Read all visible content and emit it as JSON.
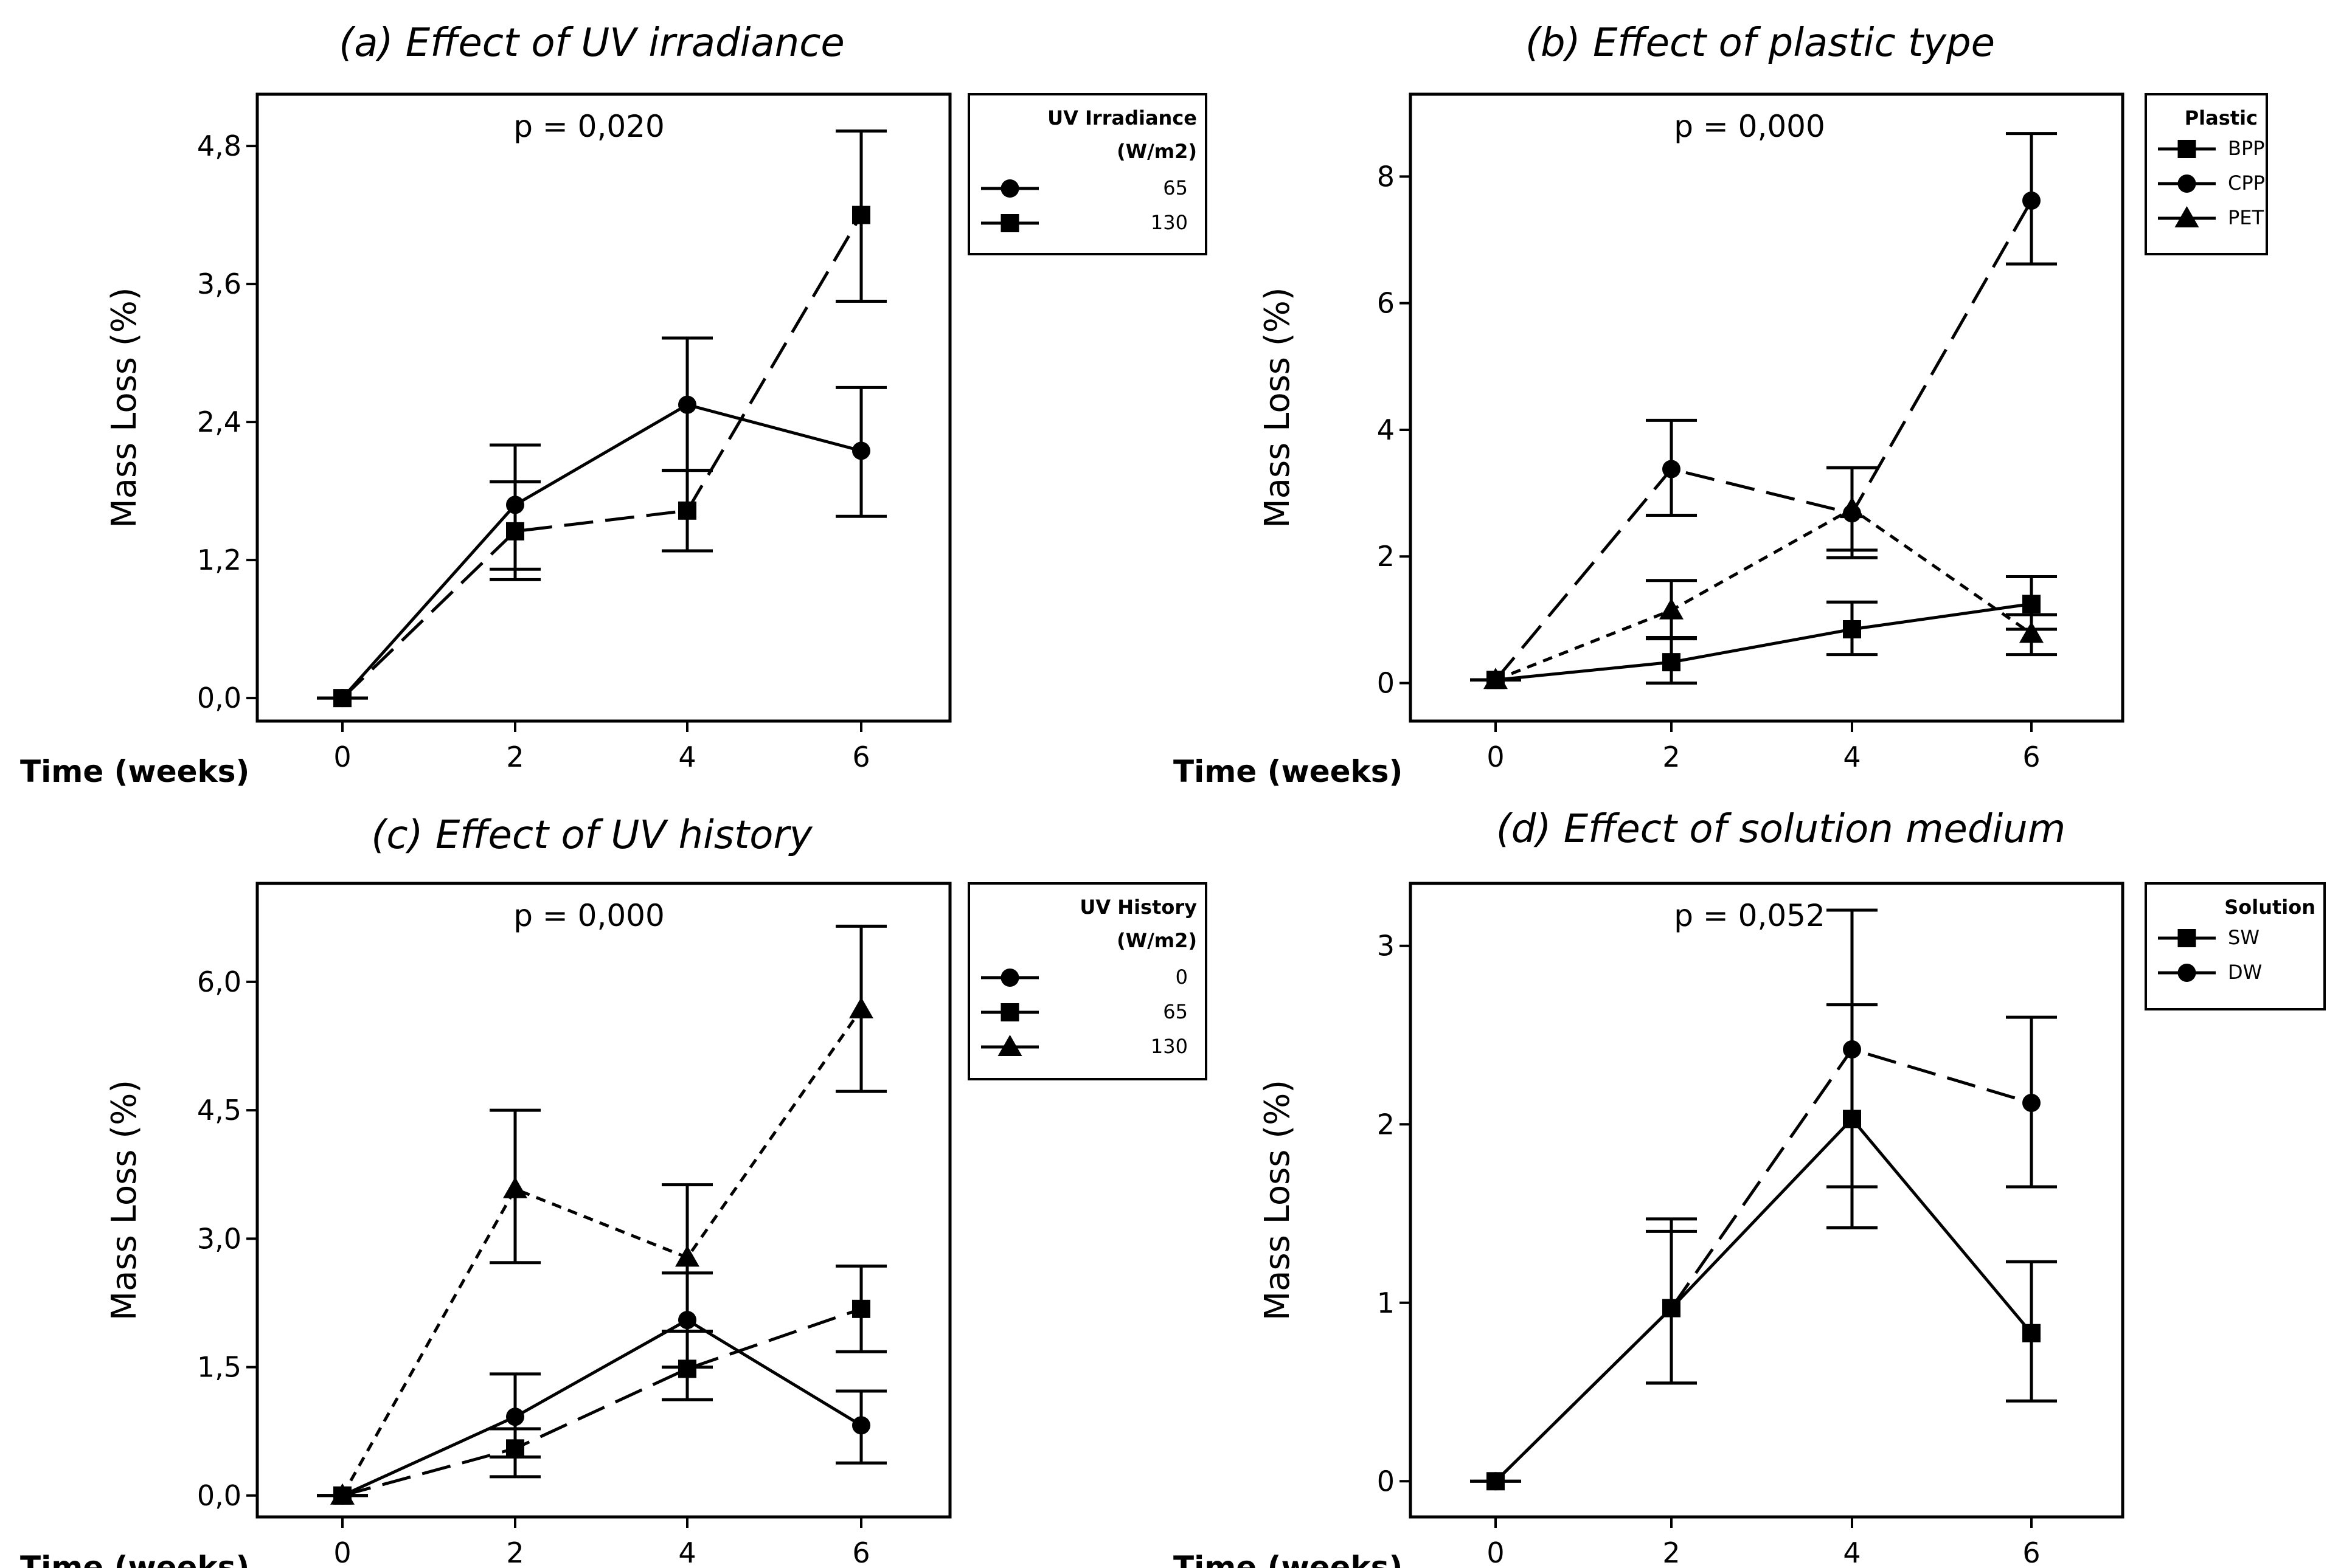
{
  "chart_data": [
    {
      "type": "line",
      "title": "(a) Effect of UV irradiance",
      "annotation": "p = 0,020",
      "xlabel": "Time (weeks)",
      "ylabel": "Mass Loss (%)",
      "x": [
        0,
        2,
        4,
        6
      ],
      "xticks": [
        "0",
        "2",
        "4",
        "6"
      ],
      "yticks": [
        0,
        1.2,
        2.4,
        3.6,
        4.8
      ],
      "ytick_labels": [
        "0,0",
        "1,2",
        "2,4",
        "3,6",
        "4,8"
      ],
      "ylim": [
        -0.2,
        5.25
      ],
      "legend_title": "UV Irradiance",
      "legend_subtitle": "(W/m2)",
      "series": [
        {
          "name": "65",
          "marker": "circle",
          "dash": "solid",
          "values": [
            0,
            1.68,
            2.55,
            2.15
          ],
          "err_low": [
            0,
            1.12,
            1.98,
            1.58
          ],
          "err_high": [
            0,
            2.2,
            3.13,
            2.7
          ]
        },
        {
          "name": "130",
          "marker": "square",
          "dash": "long",
          "values": [
            0,
            1.45,
            1.63,
            4.2
          ],
          "err_low": [
            0,
            1.03,
            1.28,
            3.45
          ],
          "err_high": [
            0,
            1.88,
            1.98,
            4.93
          ]
        }
      ]
    },
    {
      "type": "line",
      "title": "(b) Effect of plastic type",
      "annotation": "p = 0,000",
      "xlabel": "Time (weeks)",
      "ylabel": "Mass Loss (%)",
      "x": [
        0,
        2,
        4,
        6
      ],
      "xticks": [
        "0",
        "2",
        "4",
        "6"
      ],
      "yticks": [
        0,
        2,
        4,
        6,
        8
      ],
      "ytick_labels": [
        "0",
        "2",
        "4",
        "6",
        "8"
      ],
      "ylim": [
        -0.6,
        9.3
      ],
      "legend_title": "Plastic",
      "legend_subtitle": "",
      "series": [
        {
          "name": "BPP",
          "marker": "square",
          "dash": "solid",
          "values": [
            0.05,
            0.33,
            0.85,
            1.25
          ],
          "err_low": [
            0.05,
            0.0,
            0.45,
            0.85
          ],
          "err_high": [
            0.05,
            0.7,
            1.28,
            1.68
          ]
        },
        {
          "name": "CPP",
          "marker": "circle",
          "dash": "long",
          "values": [
            0.05,
            3.38,
            2.68,
            7.62
          ],
          "err_low": [
            0.05,
            2.65,
            1.98,
            6.62
          ],
          "err_high": [
            0.05,
            4.15,
            3.4,
            8.68
          ]
        },
        {
          "name": "PET",
          "marker": "triangle",
          "dash": "short",
          "values": [
            0.05,
            1.15,
            2.75,
            0.78
          ],
          "err_low": [
            0.05,
            0.72,
            2.1,
            0.45
          ],
          "err_high": [
            0.05,
            1.62,
            3.4,
            1.08
          ]
        }
      ]
    },
    {
      "type": "line",
      "title": "(c) Effect of UV history",
      "annotation": "p = 0,000",
      "xlabel": "Time (weeks)",
      "ylabel": "Mass Loss (%)",
      "x": [
        0,
        2,
        4,
        6
      ],
      "xticks": [
        "0",
        "2",
        "4",
        "6"
      ],
      "yticks": [
        0,
        1.5,
        3.0,
        4.5,
        6.0
      ],
      "ytick_labels": [
        "0,0",
        "1,5",
        "3,0",
        "4,5",
        "6,0"
      ],
      "ylim": [
        -0.25,
        7.15
      ],
      "legend_title": "UV History",
      "legend_subtitle": "(W/m2)",
      "series": [
        {
          "name": "0",
          "marker": "circle",
          "dash": "solid",
          "values": [
            0,
            0.92,
            2.05,
            0.82
          ],
          "err_low": [
            0,
            0.45,
            1.5,
            0.38
          ],
          "err_high": [
            0,
            1.42,
            2.6,
            1.22
          ]
        },
        {
          "name": "65",
          "marker": "square",
          "dash": "long",
          "values": [
            0,
            0.55,
            1.48,
            2.18
          ],
          "err_low": [
            0,
            0.22,
            1.12,
            1.68
          ],
          "err_high": [
            0,
            0.78,
            1.92,
            2.68
          ]
        },
        {
          "name": "130",
          "marker": "triangle",
          "dash": "short",
          "values": [
            0,
            3.58,
            2.78,
            5.68
          ],
          "err_low": [
            0,
            2.72,
            1.92,
            4.72
          ],
          "err_high": [
            0,
            4.5,
            3.63,
            6.65
          ]
        }
      ]
    },
    {
      "type": "line",
      "title": "(d) Effect of solution medium",
      "annotation": "p = 0,052",
      "xlabel": "Time (weeks)",
      "ylabel": "Mass Loss (%)",
      "x": [
        0,
        2,
        4,
        6
      ],
      "xticks": [
        "0",
        "2",
        "4",
        "6"
      ],
      "yticks": [
        0,
        1,
        2,
        3
      ],
      "ytick_labels": [
        "0",
        "1",
        "2",
        "3"
      ],
      "ylim": [
        -0.2,
        3.35
      ],
      "legend_title": "Solution",
      "legend_subtitle": "",
      "series": [
        {
          "name": "SW",
          "marker": "square",
          "dash": "solid",
          "values": [
            0,
            0.97,
            2.03,
            0.83
          ],
          "err_low": [
            0,
            0.55,
            1.42,
            0.45
          ],
          "err_high": [
            0,
            1.4,
            2.67,
            1.23
          ]
        },
        {
          "name": "DW",
          "marker": "circle",
          "dash": "long",
          "values": [
            0,
            0.97,
            2.42,
            2.12
          ],
          "err_low": [
            0,
            0.55,
            1.65,
            1.65
          ],
          "err_high": [
            0,
            1.47,
            3.2,
            2.6
          ]
        }
      ]
    }
  ]
}
